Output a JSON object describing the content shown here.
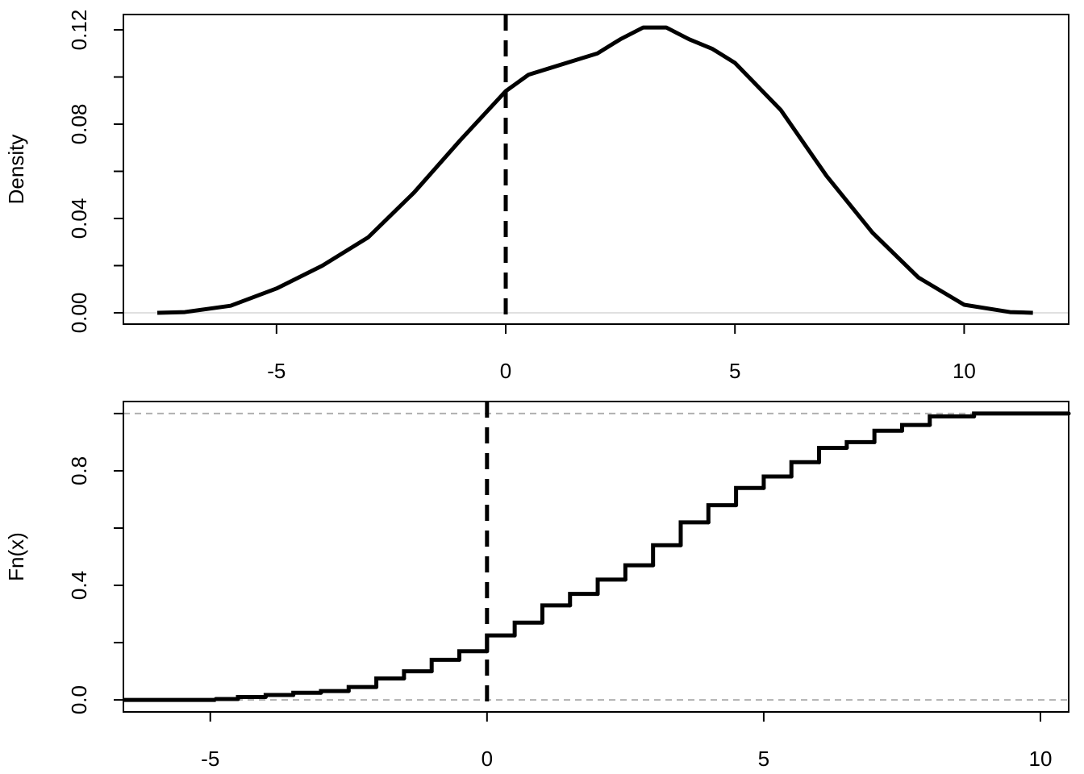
{
  "chart_data": [
    {
      "type": "line",
      "ylabel": "Density",
      "x": [
        -7.6,
        -7,
        -6,
        -5,
        -4,
        -3,
        -2,
        -1,
        0,
        0.5,
        1,
        1.5,
        2,
        2.5,
        3,
        3.5,
        4,
        4.5,
        5,
        6,
        7,
        8,
        9,
        10,
        11,
        11.5
      ],
      "values": [
        0,
        0.0003,
        0.003,
        0.0103,
        0.02,
        0.032,
        0.051,
        0.073,
        0.094,
        0.101,
        0.104,
        0.107,
        0.11,
        0.116,
        0.121,
        0.121,
        0.116,
        0.112,
        0.106,
        0.086,
        0.058,
        0.034,
        0.015,
        0.0034,
        0.0003,
        0
      ],
      "color": "#000000",
      "xlim": [
        -8.34,
        12.28
      ],
      "xticks": [
        -5,
        0,
        5,
        10
      ],
      "ylim": [
        -0.0048,
        0.1265
      ],
      "yticks": [
        {
          "value": 0,
          "label": "0.00"
        },
        {
          "value": 0.04,
          "label": "0.04"
        },
        {
          "value": 0.08,
          "label": "0.08"
        },
        {
          "value": 0.12,
          "label": "0.12"
        }
      ],
      "yminor_ticks": [
        0.02,
        0.06,
        0.1
      ],
      "vline": 0,
      "hlines": [
        0
      ],
      "hline_style": "solid"
    },
    {
      "type": "step",
      "ylabel": "Fn(x)",
      "x": [
        -4.9,
        -4.5,
        -4,
        -3.5,
        -3,
        -2.5,
        -2,
        -1.5,
        -1,
        -0.5,
        0,
        0.5,
        1,
        1.5,
        2,
        2.5,
        3,
        3.5,
        4,
        4.5,
        5,
        5.5,
        6,
        6.5,
        7,
        7.5,
        8,
        8.8
      ],
      "values": [
        0.003,
        0.01,
        0.017,
        0.025,
        0.031,
        0.045,
        0.075,
        0.1,
        0.14,
        0.17,
        0.225,
        0.27,
        0.33,
        0.37,
        0.42,
        0.47,
        0.54,
        0.62,
        0.68,
        0.74,
        0.78,
        0.83,
        0.88,
        0.9,
        0.94,
        0.96,
        0.99,
        1
      ],
      "color": "#000000",
      "xlim": [
        -6.57,
        10.51
      ],
      "xticks": [
        -5,
        0,
        5,
        10
      ],
      "ylim": [
        -0.042,
        1.042
      ],
      "yticks": [
        {
          "value": 0,
          "label": "0.0"
        },
        {
          "value": 0.4,
          "label": "0.4"
        },
        {
          "value": 0.8,
          "label": "0.8"
        }
      ],
      "yminor_ticks": [
        0.2,
        0.6,
        1
      ],
      "vline": 0,
      "hlines": [
        0,
        1
      ],
      "hline_style": "dashed"
    }
  ]
}
